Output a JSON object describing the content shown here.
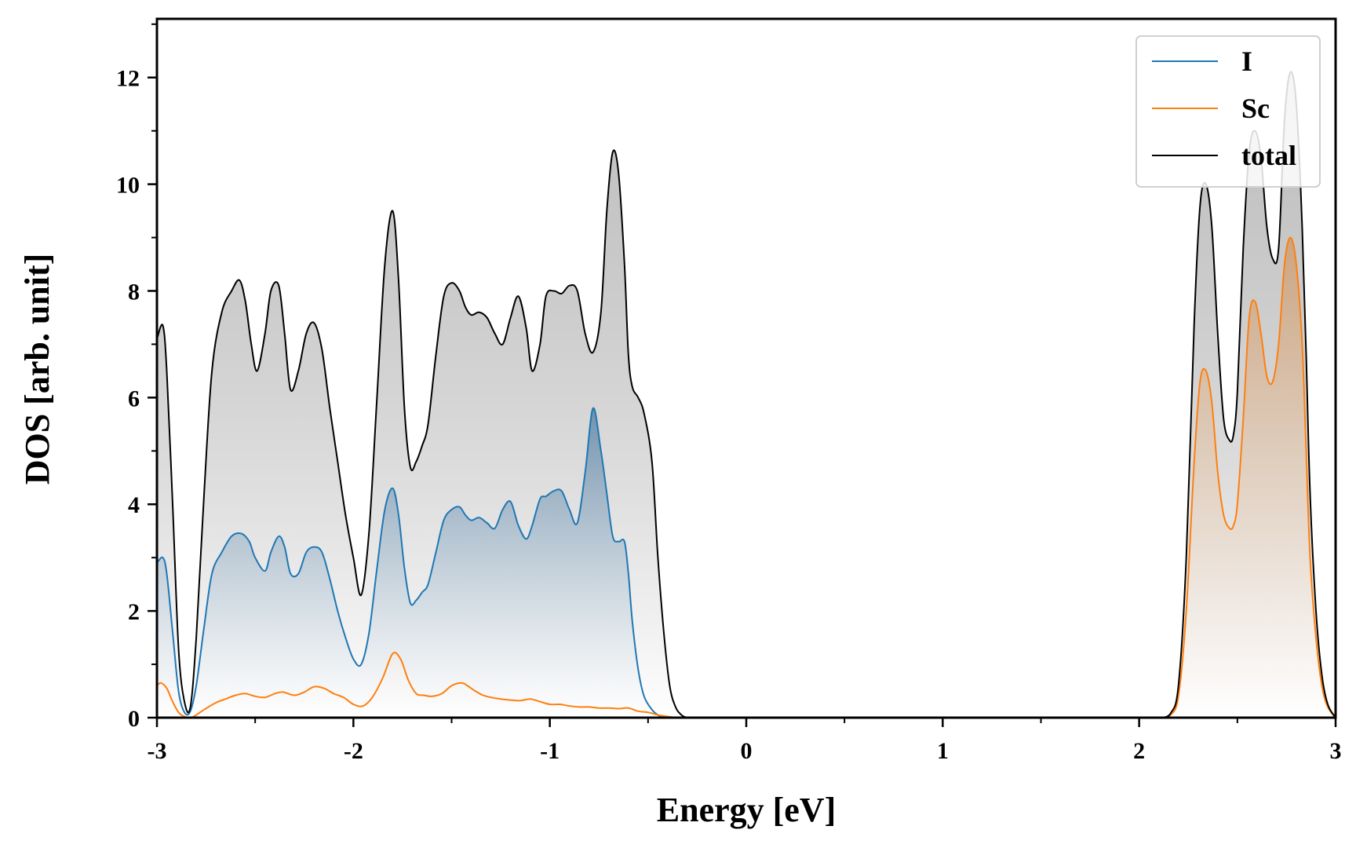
{
  "chart_data": {
    "type": "area",
    "title": "",
    "xlabel": "Energy [eV]",
    "ylabel": "DOS [arb. unit]",
    "xlim": [
      -3,
      3
    ],
    "ylim": [
      0,
      13.1
    ],
    "xticks": [
      -3,
      -2,
      -1,
      0,
      1,
      2,
      3
    ],
    "xtick_labels": [
      "-3",
      "-2",
      "-1",
      "0",
      "1",
      "2",
      "3"
    ],
    "yticks": [
      0,
      2,
      4,
      6,
      8,
      10,
      12
    ],
    "ytick_labels": [
      "0",
      "2",
      "4",
      "6",
      "8",
      "10",
      "12"
    ],
    "legend_position": "top-right",
    "series": [
      {
        "name": "I",
        "color": "#1f77b4",
        "fill": "gradient",
        "x": [
          -3.0,
          -2.97,
          -2.95,
          -2.92,
          -2.89,
          -2.86,
          -2.83,
          -2.8,
          -2.76,
          -2.72,
          -2.67,
          -2.62,
          -2.57,
          -2.53,
          -2.5,
          -2.45,
          -2.42,
          -2.38,
          -2.35,
          -2.32,
          -2.28,
          -2.24,
          -2.2,
          -2.16,
          -2.12,
          -2.08,
          -2.04,
          -2.0,
          -1.96,
          -1.92,
          -1.88,
          -1.84,
          -1.8,
          -1.77,
          -1.74,
          -1.71,
          -1.68,
          -1.65,
          -1.62,
          -1.58,
          -1.54,
          -1.5,
          -1.46,
          -1.43,
          -1.4,
          -1.36,
          -1.32,
          -1.28,
          -1.24,
          -1.2,
          -1.16,
          -1.12,
          -1.09,
          -1.05,
          -1.02,
          -0.98,
          -0.94,
          -0.9,
          -0.86,
          -0.82,
          -0.78,
          -0.74,
          -0.71,
          -0.68,
          -0.65,
          -0.62,
          -0.6,
          -0.58,
          -0.55,
          -0.52,
          -0.48,
          -0.45,
          -0.42,
          -0.39,
          -0.36,
          -0.33,
          -0.3,
          -0.27,
          -0.24,
          -0.2,
          3.0
        ],
        "values": [
          2.9,
          3.0,
          2.7,
          1.6,
          0.5,
          0.1,
          0.12,
          0.6,
          1.7,
          2.7,
          3.1,
          3.4,
          3.45,
          3.3,
          3.0,
          2.75,
          3.1,
          3.4,
          3.2,
          2.7,
          2.7,
          3.1,
          3.2,
          3.1,
          2.6,
          2.0,
          1.5,
          1.1,
          1.0,
          1.6,
          2.8,
          3.9,
          4.3,
          3.8,
          2.8,
          2.15,
          2.2,
          2.35,
          2.5,
          3.1,
          3.7,
          3.9,
          3.95,
          3.8,
          3.7,
          3.75,
          3.65,
          3.55,
          3.9,
          4.05,
          3.6,
          3.35,
          3.6,
          4.1,
          4.15,
          4.25,
          4.25,
          3.9,
          3.65,
          4.6,
          5.8,
          5.0,
          4.2,
          3.4,
          3.3,
          3.3,
          2.7,
          1.8,
          0.9,
          0.4,
          0.15,
          0.05,
          0.0,
          0.0,
          0.0,
          0.0,
          0.0,
          0.0,
          0.0,
          0.0,
          0.0
        ]
      },
      {
        "name": "Sc",
        "color": "#ff7f0e",
        "fill": "gradient",
        "x": [
          -3.0,
          -2.98,
          -2.95,
          -2.92,
          -2.89,
          -2.86,
          -2.83,
          -2.8,
          -2.76,
          -2.7,
          -2.65,
          -2.6,
          -2.55,
          -2.5,
          -2.45,
          -2.4,
          -2.36,
          -2.3,
          -2.25,
          -2.2,
          -2.15,
          -2.1,
          -2.05,
          -2.0,
          -1.95,
          -1.9,
          -1.85,
          -1.8,
          -1.76,
          -1.72,
          -1.68,
          -1.64,
          -1.6,
          -1.55,
          -1.5,
          -1.45,
          -1.42,
          -1.38,
          -1.34,
          -1.3,
          -1.25,
          -1.2,
          -1.15,
          -1.1,
          -1.05,
          -1.0,
          -0.95,
          -0.9,
          -0.85,
          -0.8,
          -0.75,
          -0.7,
          -0.65,
          -0.6,
          -0.55,
          -0.5,
          -0.45,
          -0.4,
          -0.35,
          -0.3
        ],
        "values": [
          0.6,
          0.65,
          0.55,
          0.3,
          0.1,
          0.02,
          0.0,
          0.05,
          0.15,
          0.28,
          0.35,
          0.42,
          0.45,
          0.4,
          0.38,
          0.45,
          0.48,
          0.42,
          0.48,
          0.58,
          0.55,
          0.45,
          0.38,
          0.25,
          0.22,
          0.4,
          0.75,
          1.2,
          1.1,
          0.7,
          0.45,
          0.42,
          0.4,
          0.45,
          0.6,
          0.65,
          0.6,
          0.5,
          0.42,
          0.38,
          0.35,
          0.33,
          0.32,
          0.35,
          0.3,
          0.25,
          0.25,
          0.22,
          0.2,
          0.2,
          0.18,
          0.18,
          0.17,
          0.18,
          0.12,
          0.1,
          0.05,
          0.02,
          0.0,
          0.0
        ]
      },
      {
        "name": "total",
        "color": "#000000",
        "fill": "gray-gradient",
        "x": [
          -3.0,
          -2.97,
          -2.95,
          -2.92,
          -2.89,
          -2.86,
          -2.83,
          -2.8,
          -2.76,
          -2.72,
          -2.67,
          -2.62,
          -2.58,
          -2.55,
          -2.52,
          -2.49,
          -2.45,
          -2.42,
          -2.38,
          -2.35,
          -2.32,
          -2.28,
          -2.24,
          -2.2,
          -2.16,
          -2.12,
          -2.08,
          -2.04,
          -2.0,
          -1.96,
          -1.92,
          -1.88,
          -1.84,
          -1.8,
          -1.77,
          -1.74,
          -1.71,
          -1.68,
          -1.65,
          -1.62,
          -1.58,
          -1.54,
          -1.5,
          -1.46,
          -1.43,
          -1.4,
          -1.36,
          -1.32,
          -1.28,
          -1.24,
          -1.2,
          -1.16,
          -1.12,
          -1.09,
          -1.05,
          -1.02,
          -0.98,
          -0.94,
          -0.9,
          -0.86,
          -0.82,
          -0.78,
          -0.74,
          -0.71,
          -0.68,
          -0.65,
          -0.62,
          -0.6,
          -0.58,
          -0.55,
          -0.52,
          -0.48,
          -0.45,
          -0.42,
          -0.39,
          -0.36,
          -0.33,
          -0.3,
          -0.27,
          -0.24,
          -0.2
        ],
        "values": [
          7.1,
          7.35,
          6.5,
          4.0,
          1.3,
          0.3,
          0.2,
          1.5,
          4.2,
          6.5,
          7.6,
          8.0,
          8.2,
          7.8,
          7.0,
          6.5,
          7.2,
          8.0,
          8.1,
          7.2,
          6.15,
          6.5,
          7.2,
          7.4,
          6.9,
          5.8,
          4.8,
          3.8,
          3.0,
          2.3,
          3.5,
          6.0,
          8.5,
          9.5,
          8.2,
          5.8,
          4.7,
          4.8,
          5.1,
          5.5,
          6.8,
          7.9,
          8.15,
          8.0,
          7.7,
          7.55,
          7.6,
          7.5,
          7.2,
          7.0,
          7.5,
          7.9,
          7.3,
          6.5,
          7.0,
          7.9,
          8.0,
          7.95,
          8.1,
          8.0,
          7.2,
          6.85,
          7.6,
          9.5,
          10.6,
          10.2,
          8.5,
          6.8,
          6.2,
          6.0,
          5.7,
          4.8,
          3.0,
          1.6,
          0.6,
          0.2,
          0.05,
          0.0,
          0.0,
          0.0,
          0.0
        ]
      }
    ],
    "conduction_band": {
      "x": [
        2.12,
        2.16,
        2.2,
        2.24,
        2.28,
        2.31,
        2.34,
        2.37,
        2.4,
        2.43,
        2.46,
        2.48,
        2.5,
        2.53,
        2.56,
        2.59,
        2.62,
        2.65,
        2.68,
        2.71,
        2.74,
        2.77,
        2.8,
        2.83,
        2.85,
        2.87,
        2.9,
        2.93,
        2.96,
        3.0
      ],
      "I": [
        0.0,
        0.02,
        0.1,
        0.3,
        0.48,
        0.55,
        0.57,
        0.52,
        0.42,
        0.33,
        0.28,
        0.3,
        0.35,
        0.45,
        0.52,
        0.57,
        0.55,
        0.48,
        0.42,
        0.4,
        0.45,
        0.5,
        0.5,
        0.48,
        0.42,
        0.33,
        0.2,
        0.1,
        0.04,
        0.0
      ],
      "Sc": [
        0.0,
        0.05,
        0.4,
        2.0,
        4.8,
        6.3,
        6.5,
        5.9,
        4.6,
        3.8,
        3.55,
        3.6,
        4.0,
        5.6,
        7.5,
        7.8,
        7.2,
        6.4,
        6.3,
        7.0,
        8.5,
        9.0,
        8.5,
        7.0,
        5.0,
        3.0,
        1.5,
        0.6,
        0.2,
        0.0
      ],
      "total": [
        0.0,
        0.08,
        0.6,
        3.0,
        7.4,
        9.6,
        10.0,
        9.2,
        7.2,
        5.6,
        5.2,
        5.3,
        6.1,
        8.8,
        10.6,
        11.0,
        10.5,
        9.2,
        8.6,
        8.8,
        11.2,
        12.1,
        11.5,
        9.2,
        6.8,
        4.2,
        2.0,
        0.8,
        0.25,
        0.0
      ]
    }
  }
}
